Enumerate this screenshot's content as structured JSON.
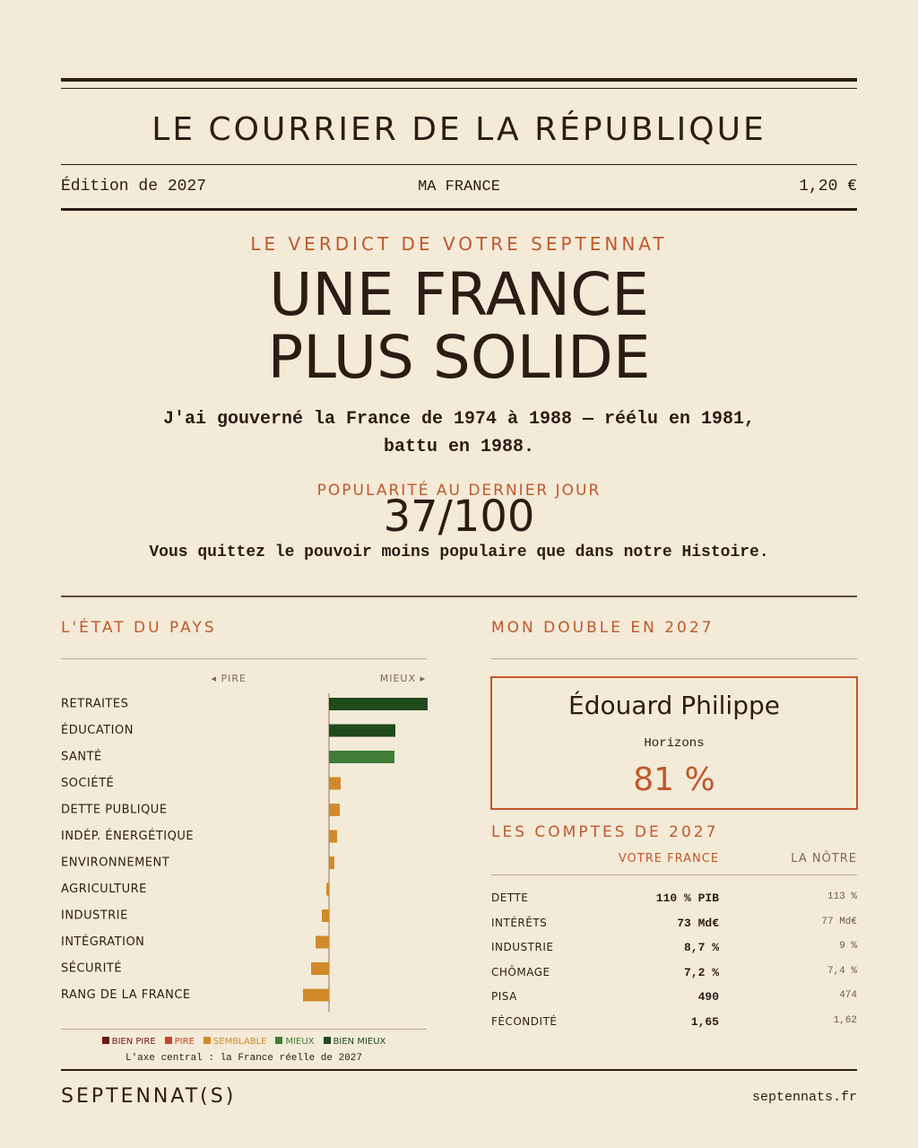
{
  "header": {
    "masthead": "LE COURRIER DE LA RÉPUBLIQUE",
    "edition": "Édition de 2027",
    "section": "MA FRANCE",
    "price": "1,20 €"
  },
  "hero": {
    "kicker": "LE VERDICT DE VOTRE SEPTENNAT",
    "headline_lines": [
      "UNE FRANCE",
      "PLUS SOLIDE"
    ],
    "blurb_lines": [
      "J'ai gouverné la France de 1974 à 1988 — réélu en 1981,",
      "battu en 1988."
    ]
  },
  "popularity": {
    "label": "POPULARITÉ AU DERNIER JOUR",
    "score": "37/100",
    "comment": "Vous quittez le pouvoir moins populaire que dans notre Histoire."
  },
  "chart_data": {
    "type": "diverging-bar",
    "title": "L'ÉTAT DU PAYS",
    "left_label": "◂ PIRE",
    "right_label": "MIEUX ▸",
    "categories": [
      "RETRAITES",
      "ÉDUCATION",
      "SANTÉ",
      "SOCIÉTÉ",
      "DETTE PUBLIQUE",
      "INDÉP. ÉNERGÉTIQUE",
      "ENVIRONNEMENT",
      "AGRICULTURE",
      "INDUSTRIE",
      "INTÉGRATION",
      "SÉCURITÉ",
      "RANG DE LA FRANCE"
    ],
    "values": [
      110,
      74,
      73,
      13,
      12,
      9,
      6,
      -3,
      -8,
      -15,
      -20,
      -29
    ],
    "colors": [
      "#1f4a1c",
      "#1f4a1c",
      "#3f7d38",
      "#d08a2a",
      "#d08a2a",
      "#d08a2a",
      "#d08a2a",
      "#d08a2a",
      "#d08a2a",
      "#d08a2a",
      "#d08a2a",
      "#d08a2a"
    ],
    "legend": [
      {
        "name": "BIEN PIRE",
        "color": "#6b1a10"
      },
      {
        "name": "PIRE",
        "color": "#c8452a"
      },
      {
        "name": "SEMBLABLE",
        "color": "#d08a2a"
      },
      {
        "name": "MIEUX",
        "color": "#3f7d38"
      },
      {
        "name": "BIEN MIEUX",
        "color": "#1f4a1c"
      }
    ],
    "note": "L'axe central : la France réelle de 2027"
  },
  "double": {
    "title": "MON DOUBLE EN 2027",
    "name": "Édouard Philippe",
    "party": "Horizons",
    "score": "81 %"
  },
  "accounts": {
    "title": "LES COMPTES DE 2027",
    "headers": [
      "VOTRE FRANCE",
      "LA NÔTRE"
    ],
    "rows": [
      [
        "DETTE",
        "110 % PIB",
        "113 %"
      ],
      [
        "INTÉRÊTS",
        "73 Md€",
        "77 Md€"
      ],
      [
        "INDUSTRIE",
        "8,7 %",
        "9 %"
      ],
      [
        "CHÔMAGE",
        "7,2 %",
        "7,4 %"
      ],
      [
        "PISA",
        "490",
        "474"
      ],
      [
        "FÉCONDITÉ",
        "1,65",
        "1,62"
      ]
    ]
  },
  "footer": {
    "brand": "SEPTENNAT(S)",
    "url": "septennats.fr"
  }
}
